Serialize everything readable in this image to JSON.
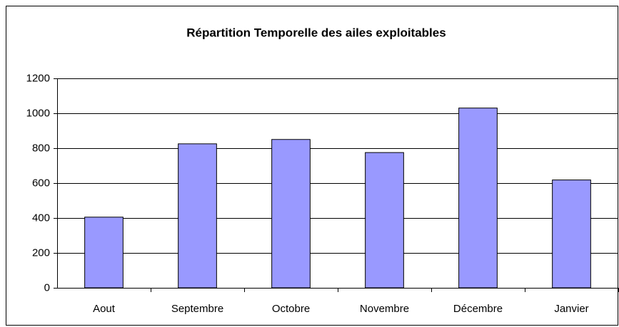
{
  "chart_data": {
    "type": "bar",
    "title": "Répartition Temporelle des ailes exploitables",
    "categories": [
      "Aout",
      "Septembre",
      "Octobre",
      "Novembre",
      "Décembre",
      "Janvier"
    ],
    "values": [
      405,
      825,
      850,
      775,
      1030,
      618
    ],
    "color": "#9999ff",
    "ylim": [
      0,
      1200
    ],
    "yticks": [
      0,
      200,
      400,
      600,
      800,
      1000,
      1200
    ],
    "grid": true
  }
}
